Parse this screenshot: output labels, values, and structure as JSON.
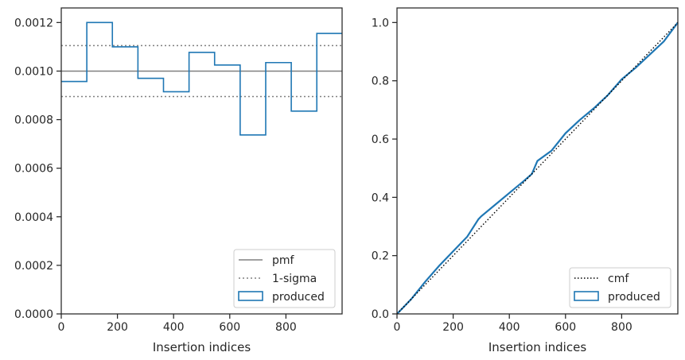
{
  "chart_data": [
    {
      "type": "histogram-step",
      "xlabel": "Insertion indices",
      "ylabel": "",
      "xlim": [
        0,
        1000
      ],
      "ylim": [
        0,
        0.00126
      ],
      "xticks": [
        "0",
        "200",
        "400",
        "600",
        "800"
      ],
      "xtick_values": [
        0,
        200,
        400,
        600,
        800
      ],
      "yticks": [
        "0.0000",
        "0.0002",
        "0.0004",
        "0.0006",
        "0.0008",
        "0.0010",
        "0.0012"
      ],
      "ytick_values": [
        0,
        0.0002,
        0.0004,
        0.0006,
        0.0008,
        0.001,
        0.0012
      ],
      "bin_edges": [
        0,
        91,
        182,
        273,
        364,
        455,
        546,
        637,
        728,
        819,
        910,
        1000
      ],
      "values": [
        0.000957,
        0.0012,
        0.0011,
        0.00097,
        0.000915,
        0.001077,
        0.001025,
        0.000737,
        0.001035,
        0.000835,
        0.001155
      ],
      "pmf": 0.001,
      "sigma_band": [
        0.000895,
        0.001105
      ],
      "legend_position": "lower right",
      "legend": [
        {
          "label": "pmf",
          "style": "solid-line",
          "color": "#808080"
        },
        {
          "label": "1-sigma",
          "style": "dotted-line",
          "color": "#808080"
        },
        {
          "label": "produced",
          "style": "box",
          "color": "#1f77b4"
        }
      ],
      "grid": false
    },
    {
      "type": "line",
      "xlabel": "Insertion indices",
      "ylabel": "",
      "xlim": [
        0,
        1000
      ],
      "ylim": [
        0,
        1.05
      ],
      "xticks": [
        "0",
        "200",
        "400",
        "600",
        "800"
      ],
      "xtick_values": [
        0,
        200,
        400,
        600,
        800
      ],
      "yticks": [
        "0.0",
        "0.2",
        "0.4",
        "0.6",
        "0.8",
        "1.0"
      ],
      "ytick_values": [
        0,
        0.2,
        0.4,
        0.6,
        0.8,
        1.0
      ],
      "series": [
        {
          "name": "cmf",
          "style": "dotted",
          "color": "#000000",
          "x": [
            0,
            1000
          ],
          "y": [
            0,
            1.0
          ]
        },
        {
          "name": "produced",
          "style": "solid",
          "color": "#1f77b4",
          "x": [
            0,
            50,
            100,
            150,
            200,
            250,
            290,
            300,
            350,
            400,
            450,
            480,
            500,
            550,
            600,
            650,
            700,
            750,
            800,
            850,
            900,
            950,
            1000
          ],
          "y": [
            0,
            0.05,
            0.11,
            0.165,
            0.215,
            0.265,
            0.325,
            0.335,
            0.375,
            0.415,
            0.455,
            0.48,
            0.525,
            0.56,
            0.62,
            0.665,
            0.705,
            0.75,
            0.805,
            0.845,
            0.89,
            0.935,
            1.0
          ]
        }
      ],
      "legend_position": "lower right",
      "legend": [
        {
          "label": "cmf",
          "style": "dotted-line",
          "color": "#000000"
        },
        {
          "label": "produced",
          "style": "box",
          "color": "#1f77b4"
        }
      ],
      "grid": false
    }
  ]
}
